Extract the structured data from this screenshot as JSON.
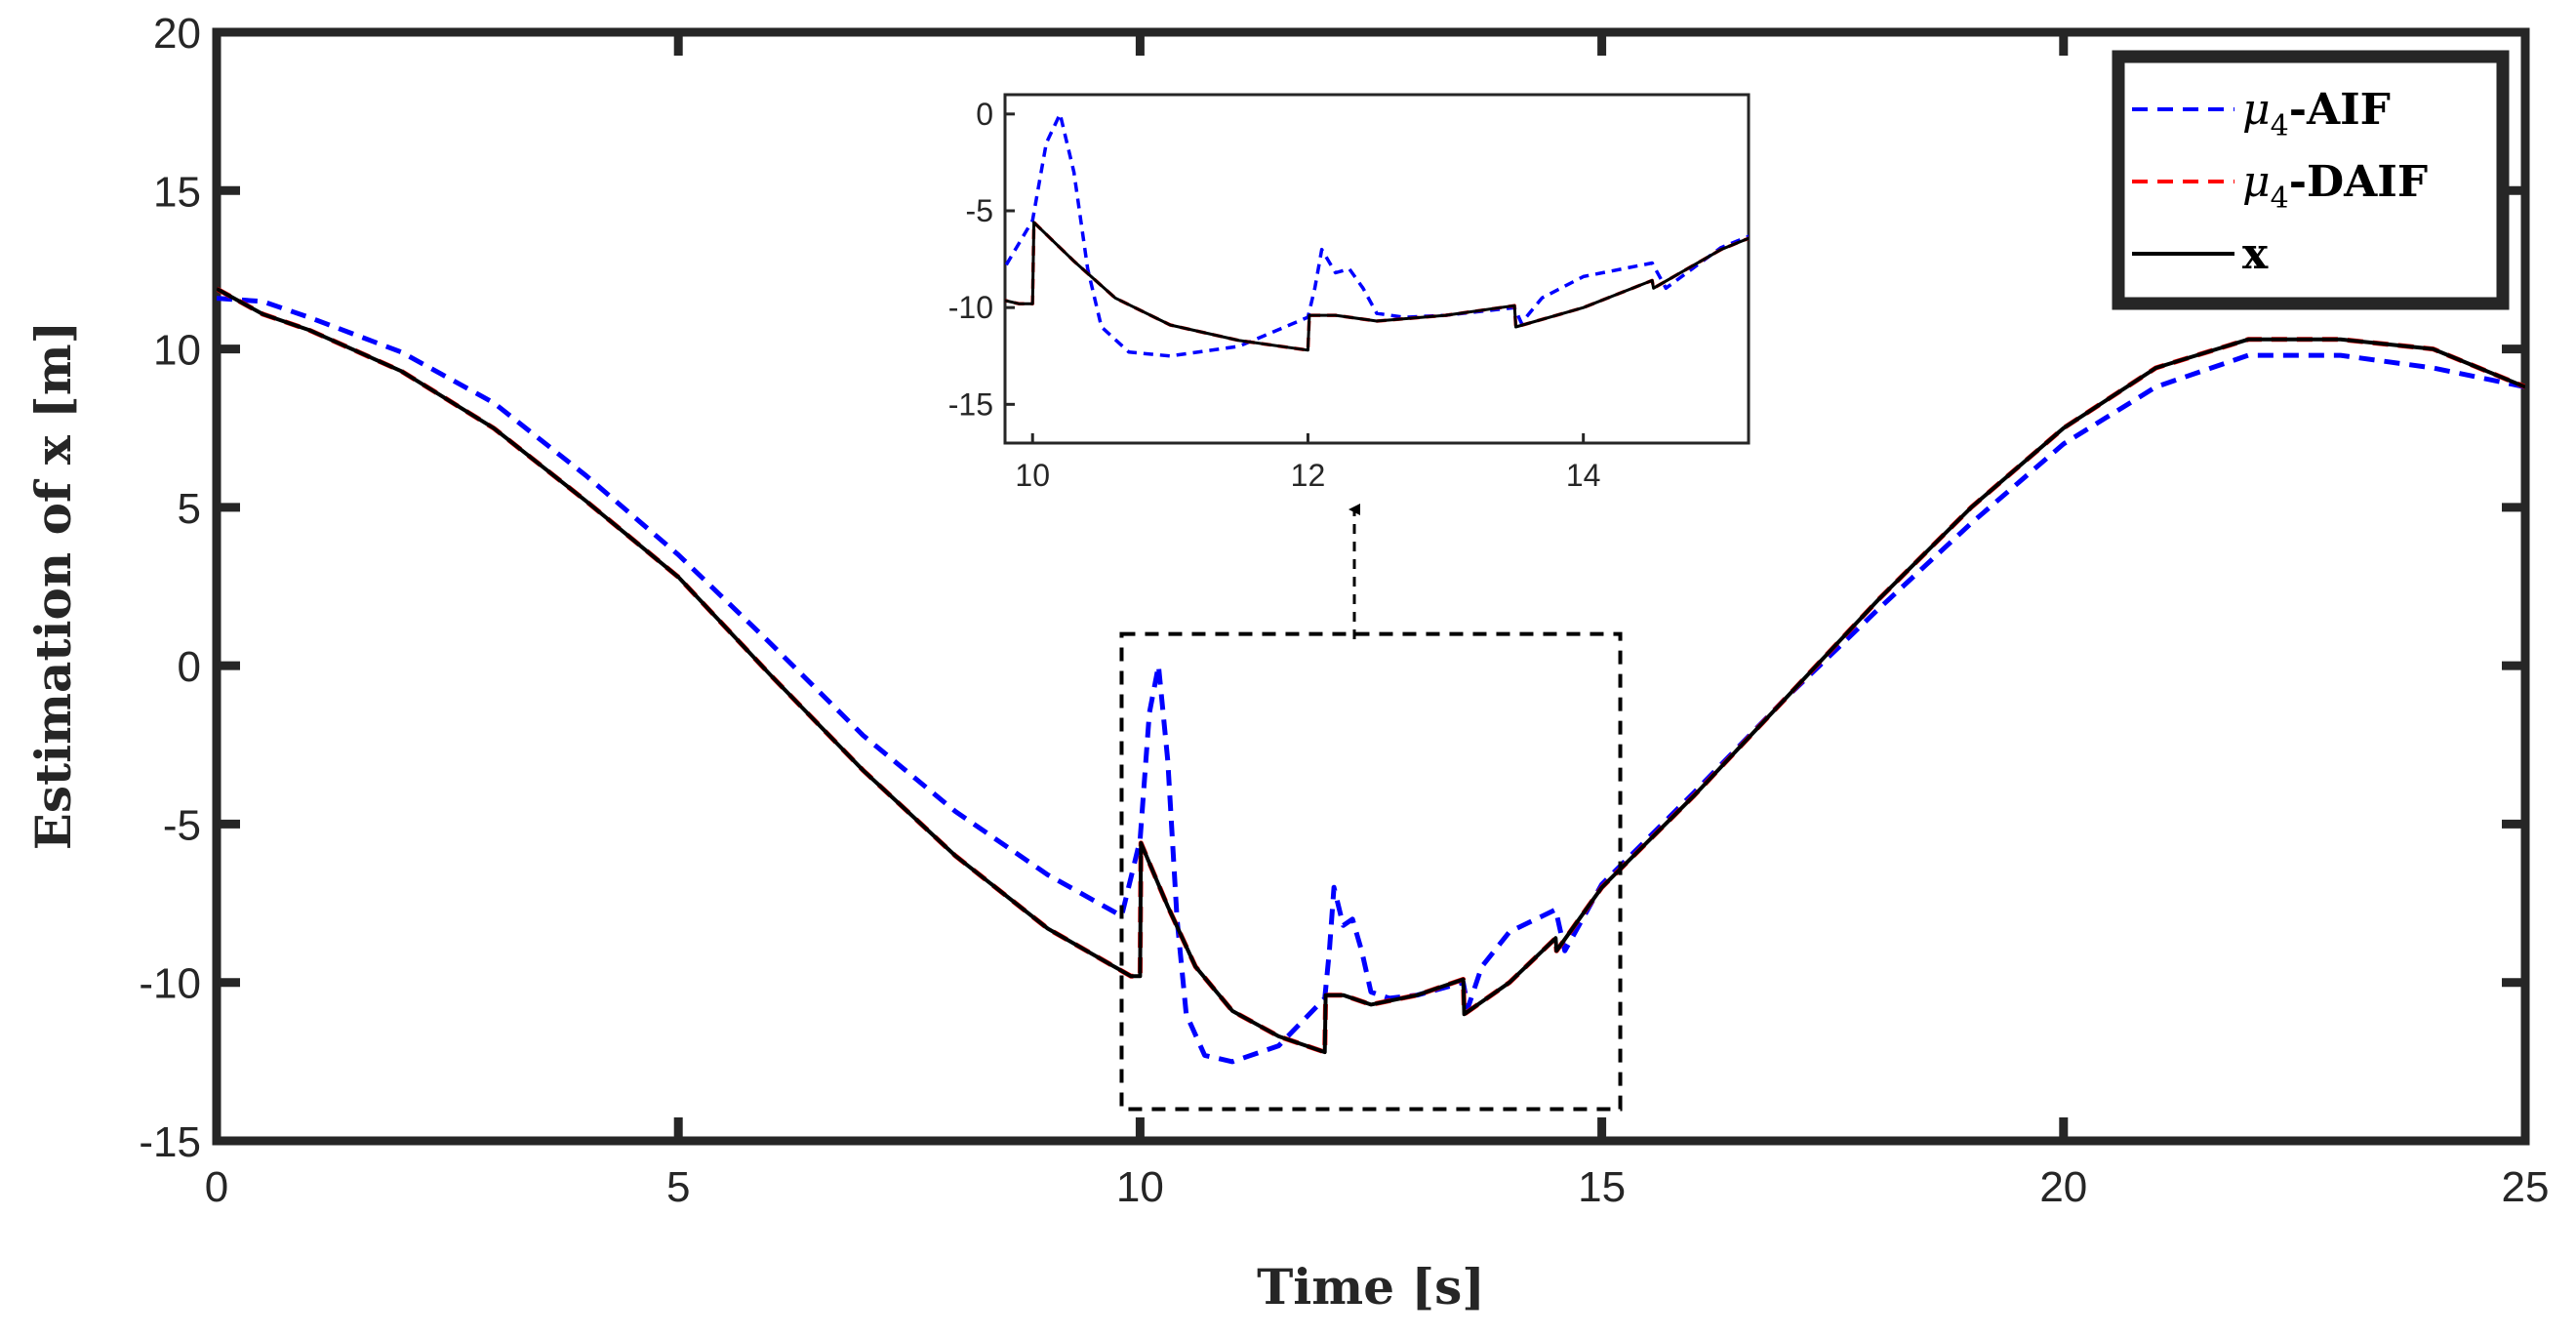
{
  "chart_data": {
    "type": "line",
    "xlabel": "Time [s]",
    "ylabel": "Estimation of x [m]",
    "xlim": [
      0,
      25
    ],
    "ylim": [
      -15,
      20
    ],
    "xticks": [
      "0",
      "5",
      "10",
      "15",
      "20",
      "25"
    ],
    "yticks": [
      "-15",
      "-10",
      "-5",
      "0",
      "5",
      "10",
      "15",
      "20"
    ],
    "legend_position": "top-right",
    "series": [
      {
        "name": "μ4-AIF",
        "legend_prefix": "μ",
        "legend_sub": "4",
        "legend_suffix": "-AIF",
        "color": "#0000ff",
        "style": "dashed",
        "x": [
          0,
          0.5,
          1,
          2,
          3,
          4,
          5,
          6,
          7,
          8,
          9,
          9.8,
          10.0,
          10.1,
          10.2,
          10.3,
          10.4,
          10.5,
          10.7,
          11.0,
          11.5,
          12.0,
          12.05,
          12.1,
          12.2,
          12.3,
          12.4,
          12.5,
          12.7,
          13.0,
          13.5,
          13.55,
          13.7,
          14.0,
          14.5,
          14.6,
          15.0,
          16,
          17,
          18,
          19,
          20,
          21,
          22,
          23,
          24,
          25
        ],
        "y": [
          11.6,
          11.5,
          11.0,
          9.9,
          8.3,
          6.0,
          3.5,
          0.7,
          -2.2,
          -4.6,
          -6.6,
          -7.9,
          -5.5,
          -1.5,
          0.0,
          -3.0,
          -8.0,
          -11.0,
          -12.3,
          -12.5,
          -12.0,
          -10.5,
          -9.0,
          -7.0,
          -8.2,
          -8.0,
          -9.0,
          -10.3,
          -10.5,
          -10.4,
          -10.0,
          -10.8,
          -9.5,
          -8.4,
          -7.7,
          -9.0,
          -6.9,
          -4.0,
          -1.0,
          1.8,
          4.5,
          7.0,
          8.8,
          9.8,
          9.8,
          9.4,
          8.8
        ]
      },
      {
        "name": "μ4-DAIF",
        "legend_prefix": "μ",
        "legend_sub": "4",
        "legend_suffix": "-DAIF",
        "color": "#ff0000",
        "style": "dashed",
        "x": [
          0,
          0.5,
          1,
          2,
          3,
          4,
          5,
          6,
          7,
          8,
          9,
          9.9,
          10.0,
          10.01,
          10.3,
          10.6,
          11.0,
          11.5,
          12.0,
          12.01,
          12.2,
          12.5,
          13.0,
          13.5,
          13.51,
          14.0,
          14.5,
          14.51,
          15.0,
          16,
          17,
          18,
          19,
          20,
          21,
          22,
          23,
          24,
          25
        ],
        "y": [
          11.9,
          11.1,
          10.6,
          9.3,
          7.5,
          5.2,
          2.8,
          -0.3,
          -3.3,
          -6.0,
          -8.3,
          -9.8,
          -9.8,
          -5.6,
          -7.6,
          -9.5,
          -10.9,
          -11.7,
          -12.2,
          -10.4,
          -10.4,
          -10.7,
          -10.4,
          -9.9,
          -11.0,
          -10.0,
          -8.6,
          -9.0,
          -7.0,
          -4.1,
          -1.0,
          2.1,
          5.0,
          7.5,
          9.4,
          10.3,
          10.3,
          10.0,
          8.8
        ]
      },
      {
        "name": "x",
        "legend_prefix": "x",
        "legend_sub": "",
        "legend_suffix": "",
        "color": "#000000",
        "style": "solid",
        "x": [
          0,
          0.5,
          1,
          2,
          3,
          4,
          5,
          6,
          7,
          8,
          9,
          9.9,
          10.0,
          10.01,
          10.3,
          10.6,
          11.0,
          11.5,
          12.0,
          12.01,
          12.2,
          12.5,
          13.0,
          13.5,
          13.51,
          14.0,
          14.5,
          14.51,
          15.0,
          16,
          17,
          18,
          19,
          20,
          21,
          22,
          23,
          24,
          25
        ],
        "y": [
          11.9,
          11.1,
          10.6,
          9.3,
          7.5,
          5.2,
          2.8,
          -0.3,
          -3.3,
          -6.0,
          -8.3,
          -9.8,
          -9.8,
          -5.6,
          -7.6,
          -9.5,
          -10.9,
          -11.7,
          -12.2,
          -10.4,
          -10.4,
          -10.7,
          -10.4,
          -9.9,
          -11.0,
          -10.0,
          -8.6,
          -9.0,
          -7.0,
          -4.1,
          -1.0,
          2.1,
          5.0,
          7.5,
          9.4,
          10.3,
          10.3,
          10.0,
          8.8
        ]
      }
    ],
    "zoom_box": {
      "xrange": [
        9.8,
        15.2
      ],
      "yrange": [
        -14,
        1
      ]
    },
    "inset": {
      "xlim": [
        9.8,
        15.2
      ],
      "ylim": [
        -17,
        1
      ],
      "xticks": [
        "10",
        "12",
        "14"
      ],
      "yticks": [
        "-15",
        "-10",
        "-5",
        "0"
      ]
    }
  }
}
